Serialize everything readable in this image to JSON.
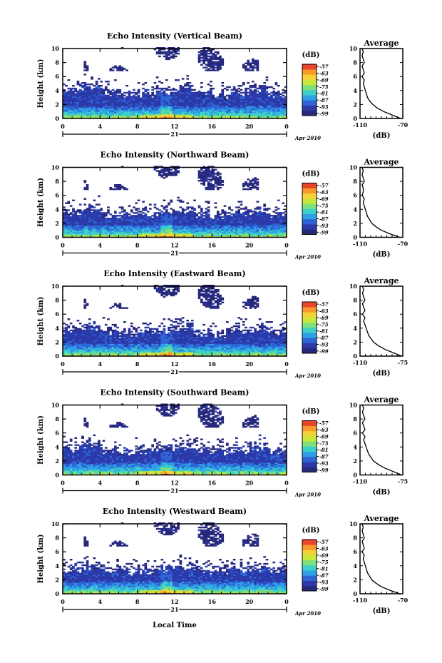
{
  "chart_data": {
    "type": "heatmap",
    "date_label": "Apr 2010",
    "day_label": "21",
    "xlabel": "Local Time",
    "x_ticks": [
      "0",
      "4",
      "8",
      "12",
      "16",
      "20",
      "0"
    ],
    "xlim": [
      0,
      24
    ],
    "ylabel": "Height (km)",
    "y_ticks": [
      "0",
      "2",
      "4",
      "6",
      "8",
      "10"
    ],
    "ylim": [
      0,
      10
    ],
    "colorbar": {
      "unit": "(dB)",
      "ticks": [
        "-57",
        "-63",
        "-69",
        "-75",
        "-81",
        "-87",
        "-93",
        "-99"
      ],
      "range": [
        -101,
        -55
      ],
      "colors": [
        "#28287a",
        "#2b3aa8",
        "#2f63d6",
        "#2fa0e6",
        "#3dd0c8",
        "#7fe07a",
        "#c8e83c",
        "#f4d23a",
        "#f79a2c",
        "#e8452a"
      ]
    },
    "panels": [
      {
        "title": "Echo Intensity (Vertical Beam)",
        "cloud_base_km": [
          4.6,
          5.0,
          4.2,
          3.8,
          4.0,
          4.4,
          4.8,
          4.0,
          3.6,
          4.2,
          4.6,
          4.0,
          3.8
        ],
        "avg": {
          "title": "Average",
          "xlabel": "(dB)",
          "x_ticks": [
            "-110",
            "-70"
          ],
          "xlim": [
            -110,
            -70
          ],
          "height_km": [
            0,
            0.5,
            1,
            1.5,
            2,
            2.5,
            3,
            3.5,
            4,
            4.5,
            5,
            5.5,
            6,
            6.5,
            7,
            7.5,
            8,
            8.5,
            9,
            9.5,
            10
          ],
          "db": [
            -72,
            -80,
            -88,
            -94,
            -98,
            -101,
            -103,
            -104,
            -105,
            -106,
            -107,
            -106,
            -108,
            -106,
            -107,
            -108,
            -106,
            -107,
            -108,
            -107,
            -108
          ]
        }
      },
      {
        "title": "Echo Intensity (Northward Beam)",
        "cloud_base_km": [
          4.0,
          4.4,
          3.8,
          3.6,
          3.8,
          4.0,
          4.2,
          3.8,
          3.6,
          4.0,
          4.2,
          3.8,
          3.6
        ],
        "avg": {
          "title": "Average",
          "xlabel": "(dB)",
          "x_ticks": [
            "-110",
            "-70"
          ],
          "xlim": [
            -110,
            -70
          ],
          "height_km": [
            0,
            0.5,
            1,
            1.5,
            2,
            2.5,
            3,
            3.5,
            4,
            4.5,
            5,
            5.5,
            6,
            6.5,
            7,
            7.5,
            8,
            8.5,
            9,
            9.5,
            10
          ],
          "db": [
            -73,
            -82,
            -90,
            -95,
            -99,
            -101,
            -103,
            -104,
            -105,
            -106,
            -107,
            -106,
            -108,
            -107,
            -107,
            -108,
            -106,
            -107,
            -108,
            -107,
            -108
          ]
        }
      },
      {
        "title": "Echo Intensity (Eastward Beam)",
        "cloud_base_km": [
          4.2,
          4.6,
          4.0,
          3.6,
          3.8,
          4.2,
          4.4,
          3.8,
          3.6,
          4.0,
          4.4,
          3.8,
          3.6
        ],
        "avg": {
          "title": "Average",
          "xlabel": "(dB)",
          "x_ticks": [
            "-110",
            "-75"
          ],
          "xlim": [
            -110,
            -75
          ],
          "height_km": [
            0,
            0.5,
            1,
            1.5,
            2,
            2.5,
            3,
            3.5,
            4,
            4.5,
            5,
            5.5,
            6,
            6.5,
            7,
            7.5,
            8,
            8.5,
            9,
            9.5,
            10
          ],
          "db": [
            -76,
            -83,
            -90,
            -95,
            -99,
            -101,
            -103,
            -104,
            -105,
            -106,
            -107,
            -106,
            -108,
            -106,
            -107,
            -108,
            -106,
            -107,
            -108,
            -107,
            -108
          ]
        }
      },
      {
        "title": "Echo Intensity (Southward Beam)",
        "cloud_base_km": [
          4.2,
          4.6,
          4.0,
          3.8,
          4.0,
          4.2,
          4.6,
          4.0,
          3.6,
          4.0,
          4.4,
          3.8,
          3.6
        ],
        "avg": {
          "title": "Average",
          "xlabel": "(dB)",
          "x_ticks": [
            "-110",
            "-75"
          ],
          "xlim": [
            -110,
            -75
          ],
          "height_km": [
            0,
            0.5,
            1,
            1.5,
            2,
            2.5,
            3,
            3.5,
            4,
            4.5,
            5,
            5.5,
            6,
            6.5,
            7,
            7.5,
            8,
            8.5,
            9,
            9.5,
            10
          ],
          "db": [
            -76,
            -83,
            -90,
            -95,
            -99,
            -101,
            -103,
            -104,
            -105,
            -106,
            -107,
            -106,
            -108,
            -106,
            -107,
            -108,
            -106,
            -107,
            -108,
            -107,
            -108
          ]
        }
      },
      {
        "title": "Echo Intensity (Westward Beam)",
        "cloud_base_km": [
          4.0,
          4.4,
          3.8,
          3.6,
          3.8,
          4.0,
          4.2,
          3.8,
          3.6,
          4.0,
          4.2,
          3.8,
          3.6
        ],
        "avg": {
          "title": "Average",
          "xlabel": "(dB)",
          "x_ticks": [
            "-110",
            "-70"
          ],
          "xlim": [
            -110,
            -70
          ],
          "height_km": [
            0,
            0.5,
            1,
            1.5,
            2,
            2.5,
            3,
            3.5,
            4,
            4.5,
            5,
            5.5,
            6,
            6.5,
            7,
            7.5,
            8,
            8.5,
            9,
            9.5,
            10
          ],
          "db": [
            -73,
            -82,
            -90,
            -95,
            -99,
            -101,
            -103,
            -104,
            -105,
            -106,
            -107,
            -106,
            -108,
            -106,
            -107,
            -108,
            -106,
            -107,
            -108,
            -107,
            -108
          ]
        }
      }
    ]
  }
}
